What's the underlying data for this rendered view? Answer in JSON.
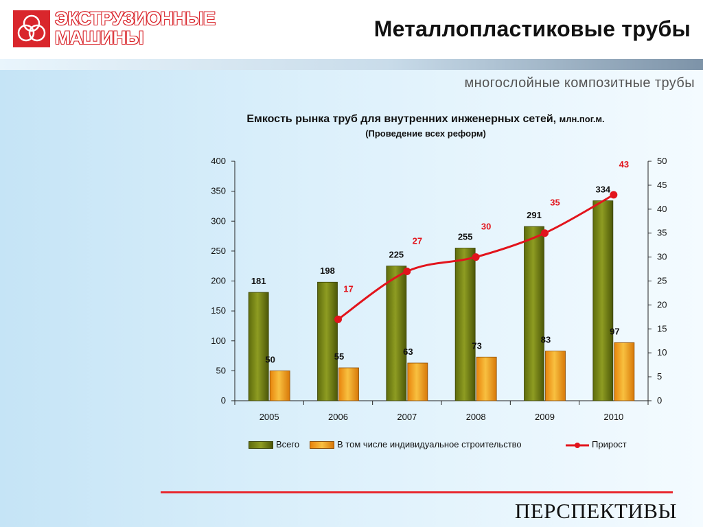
{
  "header": {
    "logo_line1": "ЭКСТРУЗИОННЫЕ",
    "logo_line2": "МАШИНЫ",
    "title": "Металлопластиковые трубы"
  },
  "subtitle": "многослойные композитные трубы",
  "footer": {
    "text": "ПЕРСПЕКТИВЫ"
  },
  "colors": {
    "brand_red": "#d9262c",
    "bar_total": "#6f7f12",
    "bar_individual": "#f0a020",
    "line_growth": "#e2141c"
  },
  "chart_data": {
    "type": "bar",
    "title": "Емкость рынка труб для внутренних инженерных сетей,",
    "title_unit": "млн.пог.м.",
    "subtitle": "(Проведение всех реформ)",
    "categories": [
      "2005",
      "2006",
      "2007",
      "2008",
      "2009",
      "2010"
    ],
    "ylim": [
      0,
      400
    ],
    "y_ticks": [
      "0",
      "50",
      "100",
      "150",
      "200",
      "250",
      "300",
      "350",
      "400"
    ],
    "y2lim": [
      0,
      50
    ],
    "y2_ticks": [
      "0",
      "5",
      "10",
      "15",
      "20",
      "25",
      "30",
      "35",
      "40",
      "45",
      "50"
    ],
    "legend_position": "bottom",
    "grid": false,
    "series": [
      {
        "name": "Всего",
        "type": "bar",
        "axis": "left",
        "values": [
          181,
          198,
          225,
          255,
          291,
          334
        ]
      },
      {
        "name": "В том числе индивидуальное строительство",
        "type": "bar",
        "axis": "left",
        "values": [
          50,
          55,
          63,
          73,
          83,
          97
        ]
      },
      {
        "name": "Прирост",
        "type": "line",
        "axis": "right",
        "values": [
          null,
          17,
          27,
          30,
          35,
          43
        ]
      }
    ]
  }
}
